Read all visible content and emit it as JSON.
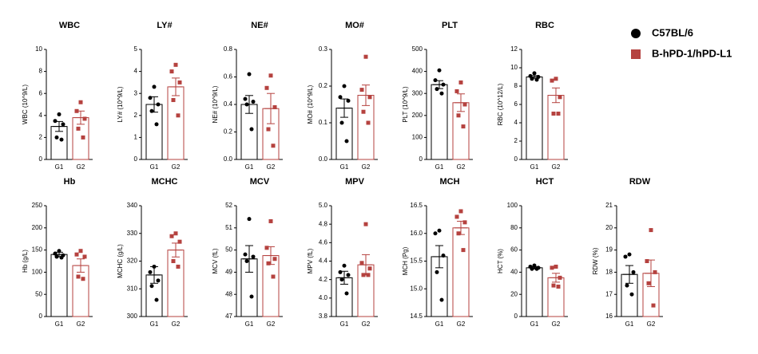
{
  "legend": [
    {
      "name": "C57BL/6",
      "color": "#000000"
    },
    {
      "name": "B-hPD-1/hPD-L1",
      "color": "#b5423f"
    }
  ],
  "chart_data": [
    {
      "type": "bar",
      "title": "WBC",
      "ylabel": "WBC (10^9/L)",
      "categories": [
        "G1",
        "G2"
      ],
      "values": [
        3.0,
        3.8
      ],
      "errors": [
        0.45,
        0.6
      ],
      "points": [
        [
          4.1,
          3.5,
          3.2,
          2.0,
          1.8
        ],
        [
          5.2,
          4.4,
          3.7,
          2.8,
          2.0
        ]
      ],
      "ylim": [
        0,
        10
      ],
      "yticks": [
        0,
        2,
        4,
        6,
        8,
        10
      ]
    },
    {
      "type": "bar",
      "title": "LY#",
      "ylabel": "LY# (10^9/L)",
      "categories": [
        "G1",
        "G2"
      ],
      "values": [
        2.5,
        3.3
      ],
      "errors": [
        0.35,
        0.4
      ],
      "points": [
        [
          3.3,
          2.8,
          2.5,
          2.2,
          1.6
        ],
        [
          4.3,
          4.0,
          3.5,
          2.7,
          2.0
        ]
      ],
      "ylim": [
        0,
        5
      ],
      "yticks": [
        0,
        1,
        2,
        3,
        4,
        5
      ]
    },
    {
      "type": "bar",
      "title": "NE#",
      "ylabel": "NE# (10^9/L)",
      "categories": [
        "G1",
        "G2"
      ],
      "values": [
        0.4,
        0.37
      ],
      "errors": [
        0.065,
        0.11
      ],
      "points": [
        [
          0.62,
          0.44,
          0.42,
          0.4,
          0.22
        ],
        [
          0.61,
          0.52,
          0.38,
          0.22,
          0.1
        ]
      ],
      "ylim": [
        0,
        0.8
      ],
      "yticks": [
        {
          "value": 0,
          "label": "0.0"
        },
        0.2,
        0.4,
        0.6,
        0.8
      ]
    },
    {
      "type": "bar",
      "title": "MO#",
      "ylabel": "MO# (10^9/L)",
      "categories": [
        "G1",
        "G2"
      ],
      "values": [
        0.14,
        0.175
      ],
      "errors": [
        0.025,
        0.028
      ],
      "points": [
        [
          0.2,
          0.17,
          0.16,
          0.1,
          0.05
        ],
        [
          0.28,
          0.19,
          0.17,
          0.13,
          0.1
        ]
      ],
      "ylim": [
        0,
        0.3
      ],
      "yticks": [
        {
          "value": 0,
          "label": "0.0"
        },
        0.1,
        0.2,
        0.3
      ]
    },
    {
      "type": "bar",
      "title": "PLT",
      "ylabel": "PLT (10^9/L)",
      "categories": [
        "G1",
        "G2"
      ],
      "values": [
        340,
        258
      ],
      "errors": [
        18,
        40
      ],
      "points": [
        [
          405,
          360,
          340,
          320,
          300
        ],
        [
          350,
          310,
          250,
          200,
          150
        ]
      ],
      "ylim": [
        0,
        500
      ],
      "yticks": [
        0,
        100,
        200,
        300,
        400,
        500
      ]
    },
    {
      "type": "bar",
      "title": "RBC",
      "ylabel": "RBC (10^12/L)",
      "categories": [
        "G1",
        "G2"
      ],
      "values": [
        9.0,
        7.0
      ],
      "errors": [
        0.15,
        0.8
      ],
      "points": [
        [
          9.4,
          9.1,
          9.0,
          8.8,
          8.7
        ],
        [
          8.8,
          8.6,
          6.8,
          5.0,
          5.0
        ]
      ],
      "ylim": [
        0,
        12
      ],
      "yticks": [
        0,
        2,
        4,
        6,
        8,
        10,
        12
      ]
    },
    {
      "type": "bar",
      "title": "Hb",
      "ylabel": "Hb (g/L)",
      "categories": [
        "G1",
        "G2"
      ],
      "values": [
        140,
        115
      ],
      "errors": [
        5,
        15
      ],
      "points": [
        [
          148,
          142,
          138,
          135,
          133
        ],
        [
          148,
          140,
          135,
          90,
          85
        ]
      ],
      "ylim": [
        0,
        250
      ],
      "yticks": [
        0,
        50,
        100,
        150,
        200,
        250
      ]
    },
    {
      "type": "bar",
      "title": "MCHC",
      "ylabel": "MCHC (g/L)",
      "categories": [
        "G1",
        "G2"
      ],
      "values": [
        315,
        324
      ],
      "errors": [
        3,
        2.5
      ],
      "points": [
        [
          318,
          316,
          313,
          311,
          306
        ],
        [
          330,
          329,
          327,
          320,
          318
        ]
      ],
      "ylim": [
        300,
        340
      ],
      "yticks": [
        300,
        310,
        320,
        330,
        340
      ]
    },
    {
      "type": "bar",
      "title": "MCV",
      "ylabel": "MCV (fL)",
      "categories": [
        "G1",
        "G2"
      ],
      "values": [
        49.6,
        49.75
      ],
      "errors": [
        0.6,
        0.4
      ],
      "points": [
        [
          51.4,
          49.8,
          49.7,
          49.5,
          47.9
        ],
        [
          51.3,
          50.1,
          49.6,
          49.4,
          48.8
        ]
      ],
      "ylim": [
        47,
        52
      ],
      "yticks": [
        47,
        48,
        49,
        50,
        51,
        52
      ]
    },
    {
      "type": "bar",
      "title": "MPV",
      "ylabel": "MPV (fL)",
      "categories": [
        "G1",
        "G2"
      ],
      "values": [
        4.22,
        4.36
      ],
      "errors": [
        0.07,
        0.11
      ],
      "points": [
        [
          4.35,
          4.28,
          4.25,
          4.2,
          4.05
        ],
        [
          4.8,
          4.38,
          4.32,
          4.25,
          4.25
        ]
      ],
      "ylim": [
        3.8,
        5.0
      ],
      "yticks": [
        3.8,
        {
          "value": 4,
          "label": "4.0"
        },
        4.2,
        4.4,
        4.6,
        4.8,
        {
          "value": 5,
          "label": "5.0"
        }
      ]
    },
    {
      "type": "bar",
      "title": "MCH",
      "ylabel": "MCH (Pg)",
      "categories": [
        "G1",
        "G2"
      ],
      "values": [
        15.58,
        16.1
      ],
      "errors": [
        0.2,
        0.12
      ],
      "points": [
        [
          16.05,
          16.0,
          15.6,
          15.3,
          14.8
        ],
        [
          16.4,
          16.3,
          16.2,
          16.0,
          15.7
        ]
      ],
      "ylim": [
        14.5,
        16.5
      ],
      "yticks": [
        14.5,
        {
          "value": 15,
          "label": "15.0"
        },
        15.5,
        {
          "value": 16,
          "label": "16.0"
        },
        16.5
      ]
    },
    {
      "type": "bar",
      "title": "HCT",
      "ylabel": "HCT (%)",
      "categories": [
        "G1",
        "G2"
      ],
      "values": [
        44,
        35
      ],
      "errors": [
        1,
        4
      ],
      "points": [
        [
          46,
          45,
          44,
          43,
          43
        ],
        [
          45,
          44,
          35,
          28,
          27
        ]
      ],
      "ylim": [
        0,
        100
      ],
      "yticks": [
        0,
        20,
        40,
        60,
        80,
        100
      ]
    },
    {
      "type": "bar",
      "title": "RDW",
      "ylabel": "RDW (%)",
      "categories": [
        "G1",
        "G2"
      ],
      "values": [
        17.9,
        17.95
      ],
      "errors": [
        0.4,
        0.6
      ],
      "points": [
        [
          18.8,
          18.7,
          18.0,
          17.4,
          17.0
        ],
        [
          19.9,
          18.5,
          18.0,
          17.5,
          16.5
        ]
      ],
      "ylim": [
        16,
        21
      ],
      "yticks": [
        16,
        17,
        18,
        19,
        20,
        21
      ]
    }
  ]
}
